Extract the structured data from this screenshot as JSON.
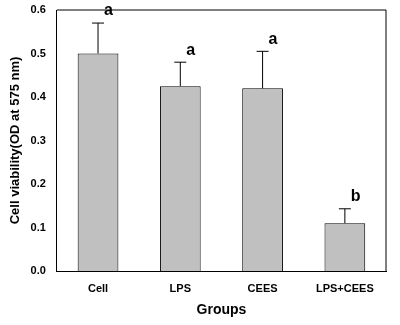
{
  "chart_data": {
    "type": "bar",
    "x_label": "Groups",
    "y_label": "Cell viability(OD at 575 nm)",
    "categories": [
      "Cell",
      "LPS",
      "CEES",
      "LPS+CEES"
    ],
    "values": [
      0.5,
      0.425,
      0.42,
      0.11
    ],
    "errors": [
      0.07,
      0.055,
      0.085,
      0.033
    ],
    "annotations": [
      "a",
      "a",
      "a",
      "b"
    ],
    "color": "#c0c0c0",
    "ylim": [
      0,
      0.6
    ],
    "yticks": [
      {
        "value": 0,
        "label": "0.0"
      },
      0.1,
      0.2,
      0.3,
      0.4,
      0.5,
      0.6
    ],
    "grid": false
  }
}
